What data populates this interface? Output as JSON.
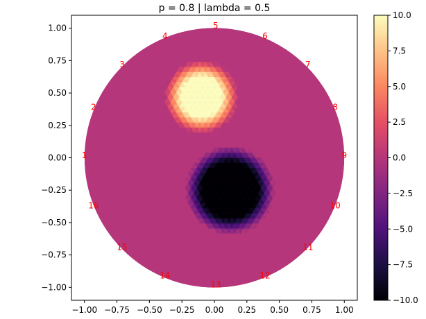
{
  "chart_data": {
    "type": "heatmap",
    "title": "p = 0.8 | lambda = 0.5",
    "xlabel": "",
    "ylabel": "",
    "xlim": [
      -1.1,
      1.1
    ],
    "ylim": [
      -1.1,
      1.1
    ],
    "xticks": [
      "−1.00",
      "−0.75",
      "−0.50",
      "−0.25",
      "0.00",
      "0.25",
      "0.50",
      "0.75",
      "1.00"
    ],
    "yticks": [
      "1.00",
      "0.75",
      "0.50",
      "0.25",
      "0.00",
      "−0.25",
      "−0.50",
      "−0.75",
      "−1.00"
    ],
    "xtick_values": [
      -1.0,
      -0.75,
      -0.5,
      -0.25,
      0.0,
      0.25,
      0.5,
      0.75,
      1.0
    ],
    "ytick_values": [
      1.0,
      0.75,
      0.5,
      0.25,
      0.0,
      -0.25,
      -0.5,
      -0.75,
      -1.0
    ],
    "colormap": "magma",
    "colorbar": {
      "vmin": -10.0,
      "vmax": 10.0,
      "ticks": [
        "10.0",
        "7.5",
        "5.0",
        "2.5",
        "0.0",
        "−2.5",
        "−5.0",
        "−7.5",
        "−10.0"
      ],
      "tick_values": [
        10.0,
        7.5,
        5.0,
        2.5,
        0.0,
        -2.5,
        -5.0,
        -7.5,
        -10.0
      ]
    },
    "domain": {
      "shape": "circle",
      "center": [
        0,
        0
      ],
      "radius": 1.0,
      "background_value": 0.0
    },
    "inclusions": [
      {
        "center": [
          -0.1,
          0.47
        ],
        "radius": 0.22,
        "value": 10.0
      },
      {
        "center": [
          0.12,
          -0.25
        ],
        "radius": 0.28,
        "value": -10.0
      }
    ],
    "electrodes": [
      {
        "label": "1",
        "x": -1.0,
        "y": 0.02
      },
      {
        "label": "2",
        "x": -0.93,
        "y": 0.39
      },
      {
        "label": "3",
        "x": -0.71,
        "y": 0.72
      },
      {
        "label": "4",
        "x": -0.38,
        "y": 0.94
      },
      {
        "label": "5",
        "x": 0.01,
        "y": 1.02
      },
      {
        "label": "6",
        "x": 0.39,
        "y": 0.94
      },
      {
        "label": "7",
        "x": 0.72,
        "y": 0.72
      },
      {
        "label": "8",
        "x": 0.93,
        "y": 0.39
      },
      {
        "label": "9",
        "x": 1.0,
        "y": 0.02
      },
      {
        "label": "10",
        "x": 0.93,
        "y": -0.37
      },
      {
        "label": "11",
        "x": 0.72,
        "y": -0.69
      },
      {
        "label": "12",
        "x": 0.39,
        "y": -0.91
      },
      {
        "label": "13",
        "x": 0.01,
        "y": -0.98
      },
      {
        "label": "14",
        "x": -0.38,
        "y": -0.91
      },
      {
        "label": "15",
        "x": -0.71,
        "y": -0.69
      },
      {
        "label": "16",
        "x": -0.93,
        "y": -0.37
      }
    ]
  }
}
